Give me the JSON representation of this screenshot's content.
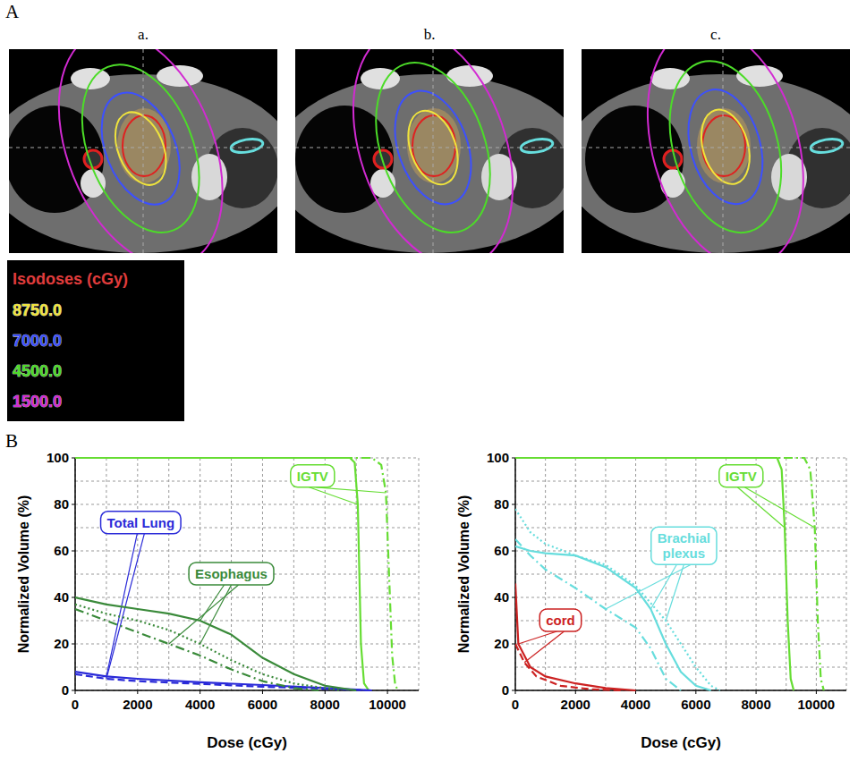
{
  "panel_labels": [
    "A",
    "B"
  ],
  "image_labels": [
    "a.",
    "b.",
    "c."
  ],
  "isodose_legend": {
    "title": "Isodoses (cGy)",
    "title_color": "#e03c3c",
    "levels": [
      {
        "value": 8750,
        "label": "8750.0",
        "color": "#f0e43c"
      },
      {
        "value": 7000,
        "label": "7000.0",
        "color": "#3c50ff"
      },
      {
        "value": 4500,
        "label": "4500.0",
        "color": "#4cdc28"
      },
      {
        "value": 1500,
        "label": "1500.0",
        "color": "#d22ad2"
      }
    ]
  },
  "chart_data": [
    {
      "type": "line",
      "x_label": "Dose (cGy)",
      "y_label": "Normalized Volume (%)",
      "xlim": [
        0,
        11000
      ],
      "ylim": [
        0,
        100
      ],
      "xticks": [
        0,
        2000,
        4000,
        6000,
        8000,
        10000
      ],
      "yticks": [
        0,
        20,
        40,
        60,
        80,
        100
      ],
      "grid": true,
      "series": [
        {
          "name": "IGTV",
          "color": "#66dd33",
          "line_style": "solid",
          "x": [
            0,
            8800,
            8950,
            9050,
            9100,
            9150,
            9250,
            9400
          ],
          "values": [
            100,
            100,
            98,
            80,
            50,
            20,
            3,
            0
          ]
        },
        {
          "name": "IGTV",
          "color": "#66dd33",
          "line_style": "dash-dot",
          "x": [
            0,
            9500,
            9800,
            9950,
            10050,
            10150,
            10250,
            10350
          ],
          "values": [
            100,
            100,
            97,
            85,
            50,
            15,
            2,
            0
          ]
        },
        {
          "name": "Total Lung",
          "color": "#2a2ad8",
          "line_style": "solid",
          "x": [
            0,
            1000,
            2000,
            4000,
            6000,
            8000,
            9000,
            9500
          ],
          "values": [
            8,
            6,
            5,
            3.5,
            2.3,
            1,
            0.3,
            0
          ]
        },
        {
          "name": "Total Lung",
          "color": "#2a2ad8",
          "line_style": "dashed",
          "x": [
            0,
            1000,
            2000,
            4000,
            6000,
            8000,
            9000,
            9500
          ],
          "values": [
            7,
            5,
            4,
            2.8,
            1.6,
            0.7,
            0.2,
            0
          ]
        },
        {
          "name": "Esophagus",
          "color": "#3a8a3a",
          "line_style": "solid",
          "x": [
            0,
            1000,
            2000,
            3000,
            4000,
            5000,
            5500,
            6000,
            7000,
            8000,
            9000
          ],
          "values": [
            40,
            37,
            35,
            33,
            30,
            24,
            19,
            14,
            7,
            2,
            0
          ]
        },
        {
          "name": "Esophagus",
          "color": "#3a8a3a",
          "line_style": "dotted",
          "x": [
            0,
            1000,
            2000,
            3000,
            4000,
            5000,
            6000,
            7000,
            8000,
            8500
          ],
          "values": [
            37,
            33,
            30,
            26,
            20,
            13,
            7,
            3,
            1,
            0
          ]
        },
        {
          "name": "Esophagus",
          "color": "#3a8a3a",
          "line_style": "dash-dot",
          "x": [
            0,
            1000,
            2000,
            3000,
            4000,
            5000,
            6000,
            7000,
            7800
          ],
          "values": [
            35,
            30,
            25,
            20,
            15,
            9,
            4,
            1,
            0
          ]
        }
      ]
    },
    {
      "type": "line",
      "x_label": "Dose (cGy)",
      "y_label": "Normalized Volume (%)",
      "xlim": [
        0,
        11000
      ],
      "ylim": [
        0,
        100
      ],
      "xticks": [
        0,
        2000,
        4000,
        6000,
        8000,
        10000
      ],
      "yticks": [
        0,
        20,
        40,
        60,
        80,
        100
      ],
      "grid": true,
      "series": [
        {
          "name": "IGTV",
          "color": "#66dd33",
          "line_style": "solid",
          "x": [
            0,
            8700,
            8850,
            8950,
            9050,
            9150,
            9250
          ],
          "values": [
            100,
            100,
            95,
            70,
            30,
            5,
            0
          ]
        },
        {
          "name": "IGTV",
          "color": "#66dd33",
          "line_style": "dash-dot",
          "x": [
            0,
            9600,
            9800,
            9950,
            10050,
            10150,
            10250
          ],
          "values": [
            100,
            100,
            95,
            70,
            30,
            5,
            0
          ]
        },
        {
          "name": "Brachial plexus",
          "color": "#66dddd",
          "line_style": "solid",
          "x": [
            0,
            500,
            1000,
            2000,
            3000,
            4000,
            4500,
            5000,
            5500,
            6000,
            6500
          ],
          "values": [
            62,
            60,
            59,
            58,
            53,
            44,
            35,
            20,
            8,
            2,
            0
          ]
        },
        {
          "name": "Brachial plexus",
          "color": "#66dddd",
          "line_style": "dotted",
          "x": [
            0,
            500,
            1000,
            2000,
            3000,
            4000,
            5000,
            5500,
            6000,
            6500,
            6800
          ],
          "values": [
            78,
            68,
            63,
            58,
            54,
            45,
            30,
            20,
            10,
            2,
            0
          ]
        },
        {
          "name": "Brachial plexus",
          "color": "#66dddd",
          "line_style": "dash-dot",
          "x": [
            0,
            500,
            1000,
            2000,
            3000,
            4000,
            4500,
            5000,
            5500
          ],
          "values": [
            65,
            58,
            52,
            44,
            35,
            27,
            18,
            5,
            0
          ]
        },
        {
          "name": "cord",
          "color": "#cc2222",
          "line_style": "solid",
          "x": [
            0,
            100,
            500,
            1000,
            2000,
            3000,
            4000
          ],
          "values": [
            46,
            20,
            10,
            6,
            3,
            1,
            0
          ]
        },
        {
          "name": "cord",
          "color": "#cc2222",
          "line_style": "dashed",
          "x": [
            0,
            300,
            700,
            1500,
            2500,
            3500
          ],
          "values": [
            20,
            12,
            6,
            2,
            0.5,
            0
          ]
        }
      ]
    }
  ]
}
